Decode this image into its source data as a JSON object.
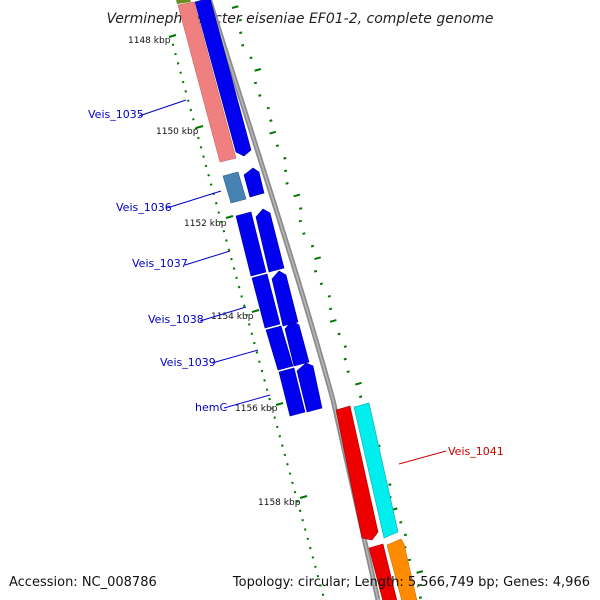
{
  "title": "Verminephrobacter eiseniae EF01-2, complete genome",
  "footer": {
    "accession": "Accession: NC_008786",
    "summary": "Topology: circular; Length: 5,566,749 bp; Genes: 4,966"
  },
  "kbp_markers": [
    "1148 kbp",
    "1150 kbp",
    "1152 kbp",
    "1154 kbp",
    "1156 kbp",
    "1158 kbp"
  ],
  "gene_labels": [
    {
      "text": "Veis_1035",
      "color": "#0000cc"
    },
    {
      "text": "Veis_1036",
      "color": "#0000cc"
    },
    {
      "text": "Veis_1037",
      "color": "#0000cc"
    },
    {
      "text": "Veis_1038",
      "color": "#0000cc"
    },
    {
      "text": "Veis_1039",
      "color": "#0000cc"
    },
    {
      "text": "hemC",
      "color": "#0000cc"
    },
    {
      "text": "Veis_1041",
      "color": "#cc0000"
    }
  ],
  "colors": {
    "backbone": "#8c8c8c",
    "gene_forward": "#0000ee",
    "gene_salmon": "#f08080",
    "gene_steelblue": "#4682b4",
    "gene_red": "#ee0000",
    "gene_cyan": "#00eeee",
    "gene_orange": "#ff8c00",
    "gene_olive": "#6b8e23",
    "gc_tick": "#007700"
  }
}
